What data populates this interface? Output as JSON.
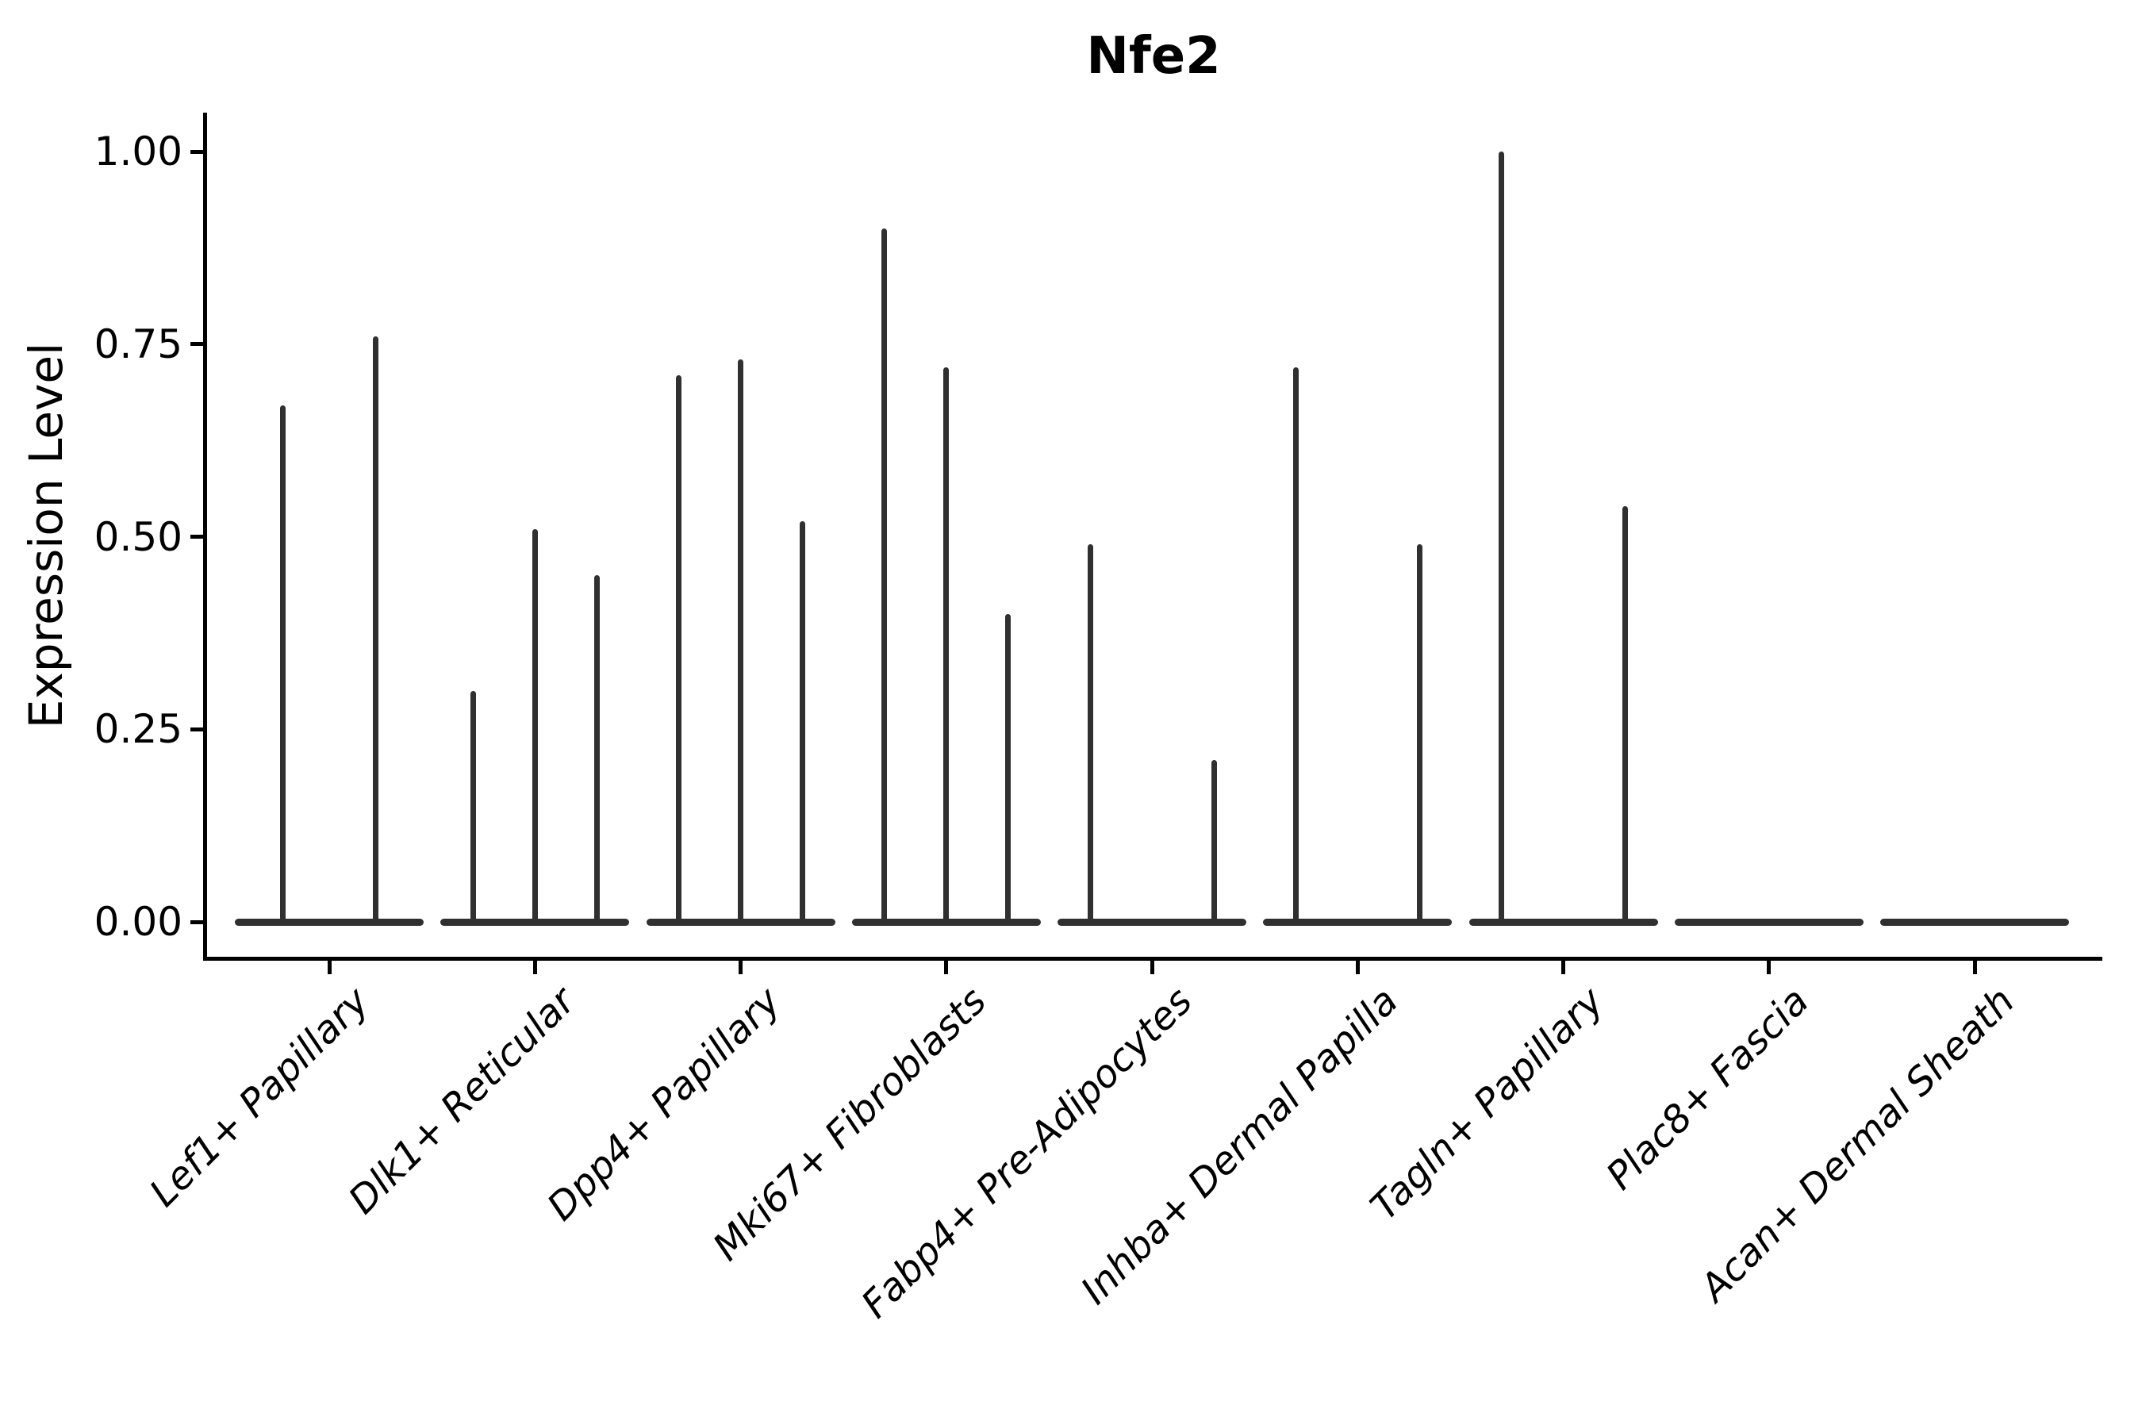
{
  "chart_data": {
    "type": "violin",
    "title": "Nfe2",
    "ylabel": "Expression Level",
    "xlabel": "",
    "ylim": [
      0,
      1.08
    ],
    "yticks": [
      0.0,
      0.25,
      0.5,
      0.75,
      1.0
    ],
    "ytick_labels": [
      "0.00",
      "0.25",
      "0.50",
      "0.75",
      "1.00"
    ],
    "grid": false,
    "legend": "none",
    "x_tick_rotation_deg": 45,
    "x_tick_style": "italic",
    "violin_color": "#303030",
    "axis_color": "#000000",
    "background": "#ffffff",
    "note": "Violins are collapsed to thin vertical spikes above flat baselines at expression 0; 'peak' is the top of each spike in Expression Level units; 'group' is the dodge sub-position within the category",
    "categories": [
      "Lef1+ Papillary",
      "Dlk1+ Reticular",
      "Dpp4+ Papillary",
      "Mki67+ Fibroblasts",
      "Fabp4+ Pre-Adipocytes",
      "Inhba+ Dermal Papilla",
      "Tagln+ Papillary",
      "Plac8+ Fascia",
      "Acan+ Dermal Sheath"
    ],
    "series": [
      {
        "category": "Lef1+ Papillary",
        "n_groups": 2,
        "spikes": [
          {
            "group": 0,
            "peak": 0.67
          },
          {
            "group": 1,
            "peak": 0.76
          }
        ]
      },
      {
        "category": "Dlk1+ Reticular",
        "n_groups": 3,
        "spikes": [
          {
            "group": 0,
            "peak": 0.3
          },
          {
            "group": 1,
            "peak": 0.51
          },
          {
            "group": 2,
            "peak": 0.45
          }
        ]
      },
      {
        "category": "Dpp4+ Papillary",
        "n_groups": 3,
        "spikes": [
          {
            "group": 0,
            "peak": 0.71
          },
          {
            "group": 1,
            "peak": 0.73
          },
          {
            "group": 2,
            "peak": 0.52
          }
        ]
      },
      {
        "category": "Mki67+ Fibroblasts",
        "n_groups": 3,
        "spikes": [
          {
            "group": 0,
            "peak": 0.9
          },
          {
            "group": 1,
            "peak": 0.72
          },
          {
            "group": 2,
            "peak": 0.4
          }
        ]
      },
      {
        "category": "Fabp4+ Pre-Adipocytes",
        "n_groups": 3,
        "spikes": [
          {
            "group": 0,
            "peak": 0.49
          },
          {
            "group": 2,
            "peak": 0.21
          }
        ]
      },
      {
        "category": "Inhba+ Dermal Papilla",
        "n_groups": 3,
        "spikes": [
          {
            "group": 0,
            "peak": 0.72
          },
          {
            "group": 2,
            "peak": 0.49
          }
        ]
      },
      {
        "category": "Tagln+ Papillary",
        "n_groups": 3,
        "spikes": [
          {
            "group": 0,
            "peak": 1.0
          },
          {
            "group": 2,
            "peak": 0.54
          }
        ]
      },
      {
        "category": "Plac8+ Fascia",
        "n_groups": 3,
        "spikes": []
      },
      {
        "category": "Acan+ Dermal Sheath",
        "n_groups": 3,
        "spikes": []
      }
    ]
  }
}
